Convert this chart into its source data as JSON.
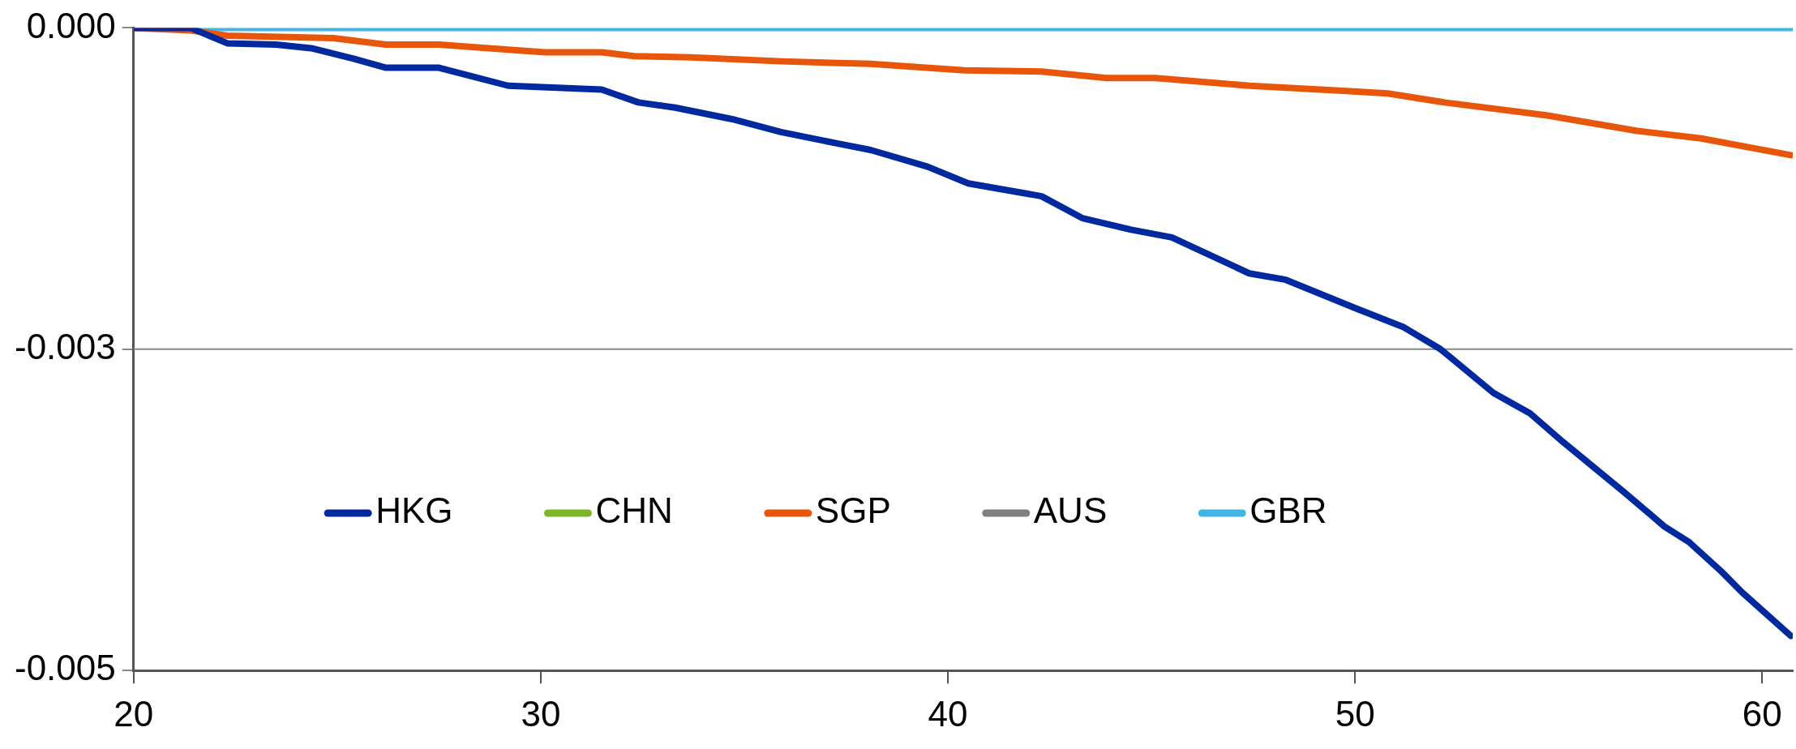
{
  "chart_data": {
    "type": "line",
    "xlim": [
      20,
      60.75
    ],
    "xticks": [
      20,
      30,
      40,
      50,
      60
    ],
    "ylim": [
      -0.005,
      0
    ],
    "yticks": [
      {
        "value": -0.005,
        "label": "-0.005"
      },
      {
        "value": -0.0025,
        "label": "-0.003"
      },
      {
        "value": 0,
        "label": "0.000"
      }
    ],
    "ref_lines": [
      {
        "axis": "y",
        "value": -0.0025,
        "color": "#888888"
      }
    ],
    "legend": "bottom",
    "marker": "none",
    "line_style": "solid",
    "series": [
      {
        "name": "HKG",
        "color": "#0029a0",
        "x": [
          20,
          21.4,
          22.3,
          23.5,
          24.4,
          25.4,
          26.2,
          27.5,
          29.2,
          31.5,
          32.4,
          33.3,
          34.7,
          35.9,
          37.3,
          38.1,
          39.5,
          40.5,
          42.3,
          43.3,
          44.5,
          45.5,
          47.4,
          48.3,
          50,
          51.2,
          52.1,
          53.4,
          54.3,
          55.1,
          56.6,
          57.6,
          58.2,
          59,
          59.5,
          60.7
        ],
        "values": [
          0,
          0,
          -0.00012,
          -0.00013,
          -0.00016,
          -0.00024,
          -0.00031,
          -0.00031,
          -0.00045,
          -0.00048,
          -0.00058,
          -0.00062,
          -0.00071,
          -0.00081,
          -0.0009,
          -0.00095,
          -0.00108,
          -0.00121,
          -0.00131,
          -0.00148,
          -0.00157,
          -0.00163,
          -0.00191,
          -0.00196,
          -0.00218,
          -0.00233,
          -0.0025,
          -0.00284,
          -0.003,
          -0.00322,
          -0.00361,
          -0.00388,
          -0.004,
          -0.00423,
          -0.00439,
          -0.00473
        ]
      },
      {
        "name": "CHN",
        "color": "#7ab829"
      },
      {
        "name": "SGP",
        "color": "#e8560c",
        "x": [
          20,
          21.4,
          22.3,
          24.9,
          26.2,
          27.5,
          29.2,
          30.1,
          31.5,
          32.3,
          33.7,
          35.9,
          38.1,
          40.4,
          42.3,
          43.9,
          45.1,
          47.4,
          49.7,
          50.8,
          52.2,
          54.7,
          56.9,
          58.5,
          60.7
        ],
        "values": [
          0,
          -2e-05,
          -6e-05,
          -8e-05,
          -0.00013,
          -0.00013,
          -0.00017,
          -0.00019,
          -0.00019,
          -0.00022,
          -0.00023,
          -0.00026,
          -0.00028,
          -0.00033,
          -0.00034,
          -0.00039,
          -0.00039,
          -0.00045,
          -0.00049,
          -0.00051,
          -0.00058,
          -0.00068,
          -0.0008,
          -0.00086,
          -0.00099
        ]
      },
      {
        "name": "AUS",
        "color": "#7f7f7f"
      },
      {
        "name": "GBR",
        "color": "#41b6e6",
        "x": [
          20,
          60.75
        ],
        "values": [
          0,
          0
        ]
      }
    ]
  }
}
